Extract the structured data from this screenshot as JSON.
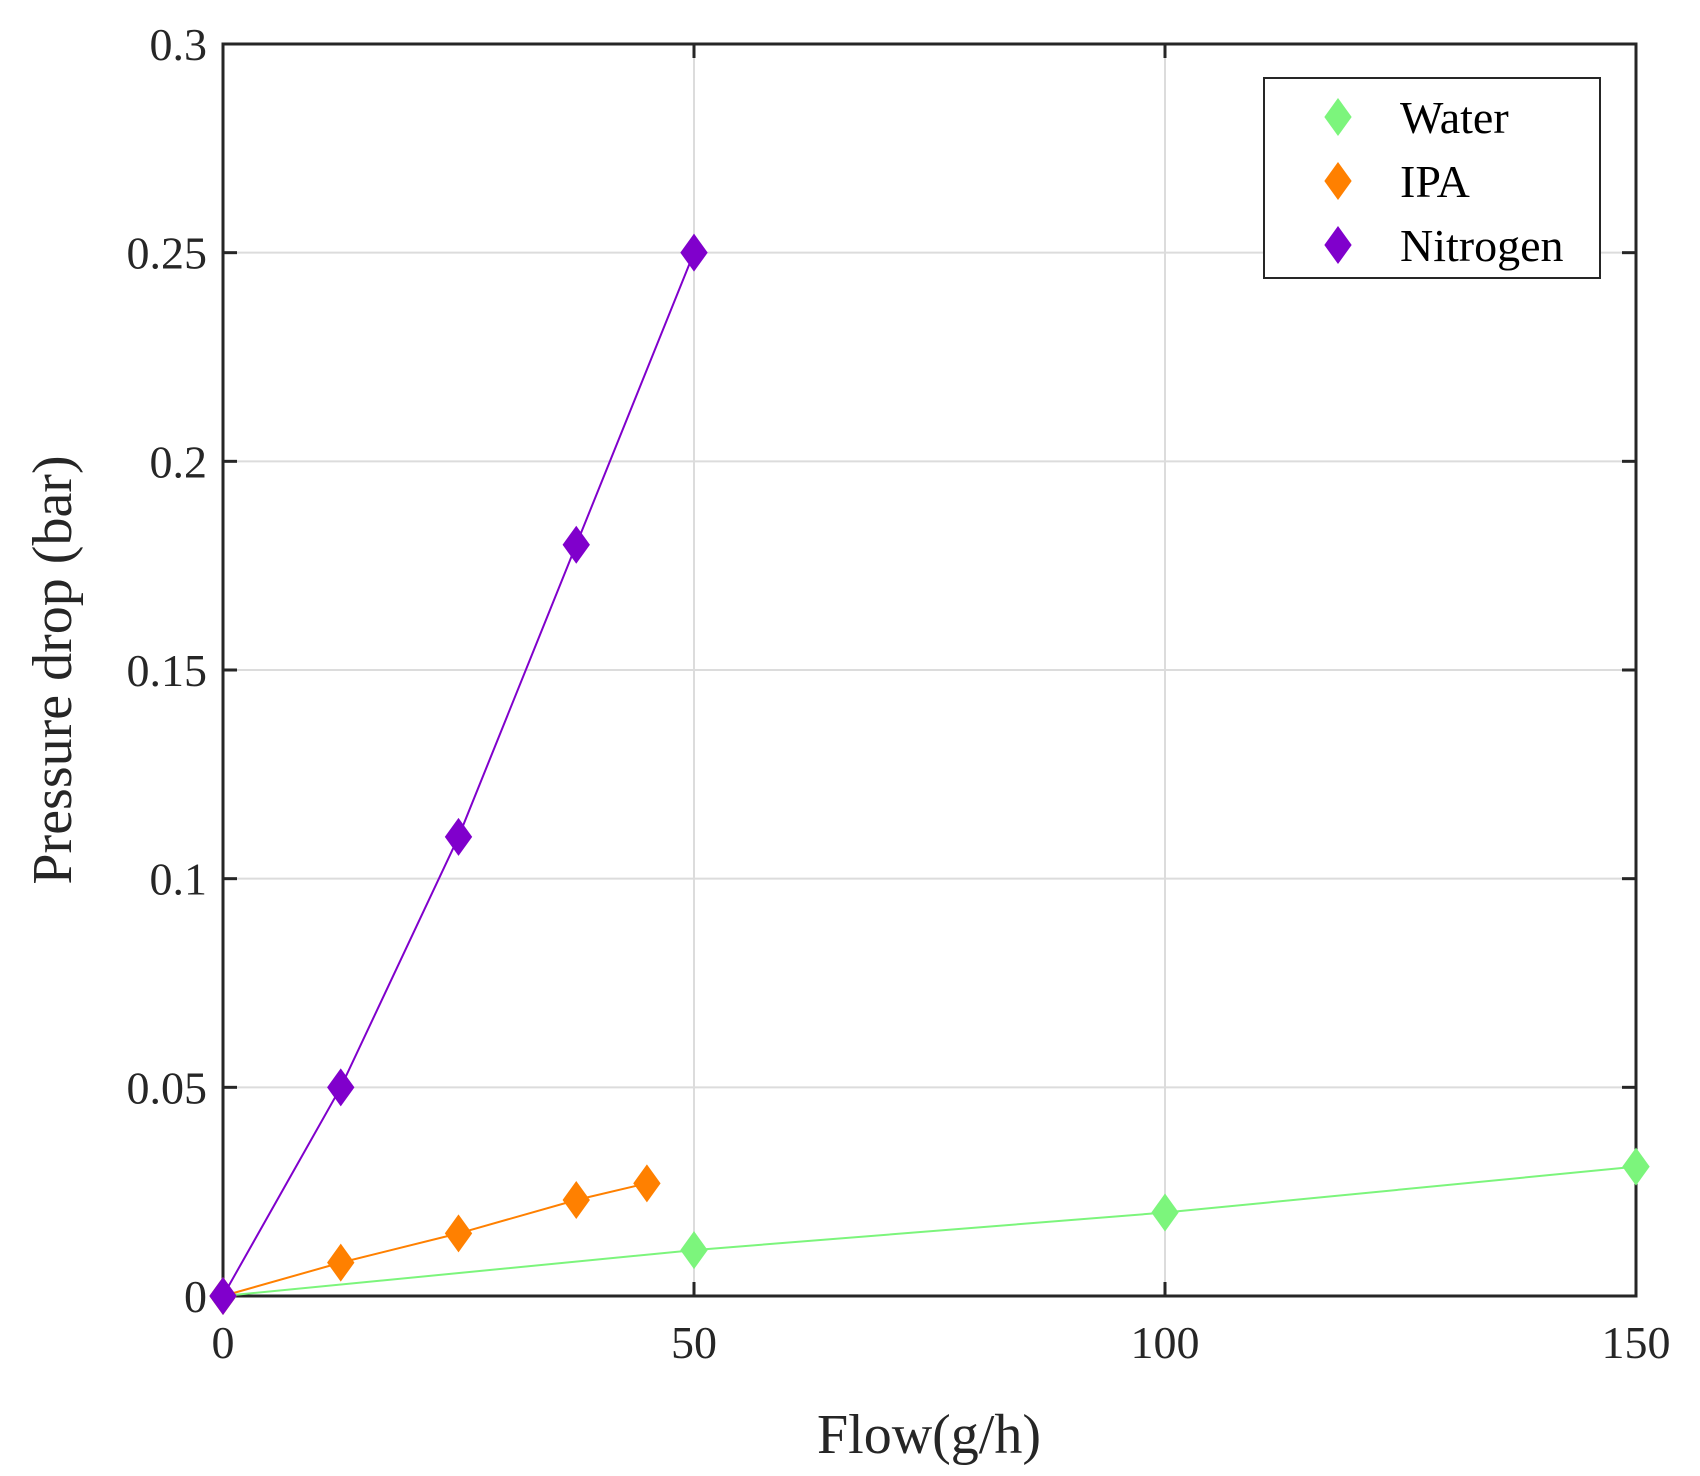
{
  "chart_data": {
    "type": "line",
    "xlabel": "Flow(g/h)",
    "ylabel": "Pressure drop (bar)",
    "xlim": [
      0,
      150
    ],
    "ylim": [
      0,
      0.3
    ],
    "xticks": [
      0,
      50,
      100,
      150
    ],
    "xtick_labels": [
      "0",
      "50",
      "100",
      "150"
    ],
    "yticks": [
      0,
      0.05,
      0.1,
      0.15,
      0.2,
      0.25,
      0.3
    ],
    "ytick_labels": [
      "0",
      "0.05",
      "0.1",
      "0.15",
      "0.2",
      "0.25",
      "0.3"
    ],
    "grid": true,
    "legend_position": "top-right",
    "series": [
      {
        "name": "Water",
        "color": "#7cf57c",
        "marker": "diamond",
        "x": [
          0,
          50,
          100,
          150
        ],
        "y": [
          0,
          0.011,
          0.02,
          0.031
        ]
      },
      {
        "name": "IPA",
        "color": "#ff8000",
        "marker": "diamond",
        "x": [
          0,
          12.5,
          25,
          37.5,
          45
        ],
        "y": [
          0,
          0.008,
          0.015,
          0.023,
          0.027
        ]
      },
      {
        "name": "Nitrogen",
        "color": "#8000cc",
        "marker": "diamond",
        "x": [
          0,
          12.5,
          25,
          37.5,
          50
        ],
        "y": [
          0,
          0.05,
          0.11,
          0.18,
          0.25
        ]
      }
    ]
  }
}
